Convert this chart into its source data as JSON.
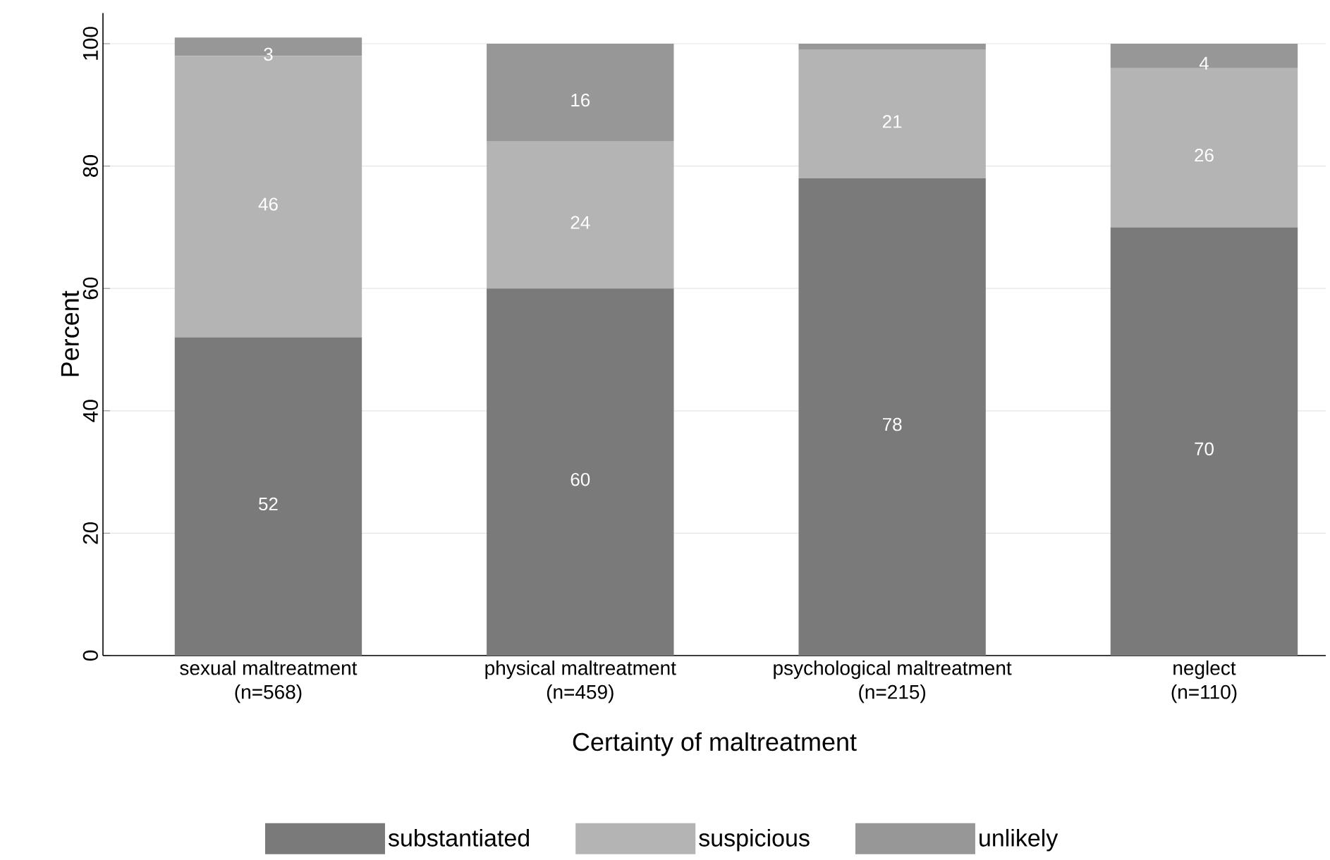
{
  "chart_data": {
    "type": "bar",
    "stacked": true,
    "xlabel": "Certainty of maltreatment",
    "ylabel": "Percent",
    "categories": [
      "sexual maltreatment (n=568)",
      "physical maltreatment (n=459)",
      "psychological maltreatment (n=215)",
      "neglect (n=110)"
    ],
    "series": [
      {
        "name": "substantiated",
        "color": "#7a7a7a",
        "values": [
          52,
          60,
          78,
          70
        ],
        "value_labels": [
          "52",
          "60",
          "78",
          "70"
        ]
      },
      {
        "name": "suspicious",
        "color": "#b4b4b4",
        "values": [
          46,
          24,
          21,
          26
        ],
        "value_labels": [
          "46",
          "24",
          "21",
          "26"
        ]
      },
      {
        "name": "unlikely",
        "color": "#979797",
        "values": [
          3,
          16,
          1,
          4
        ],
        "value_labels": [
          "3",
          "16",
          null,
          "4"
        ]
      }
    ],
    "ylim": [
      0,
      105
    ],
    "yticks": [
      0,
      20,
      40,
      60,
      80,
      100
    ],
    "grid": "y",
    "legend": "bottom"
  }
}
